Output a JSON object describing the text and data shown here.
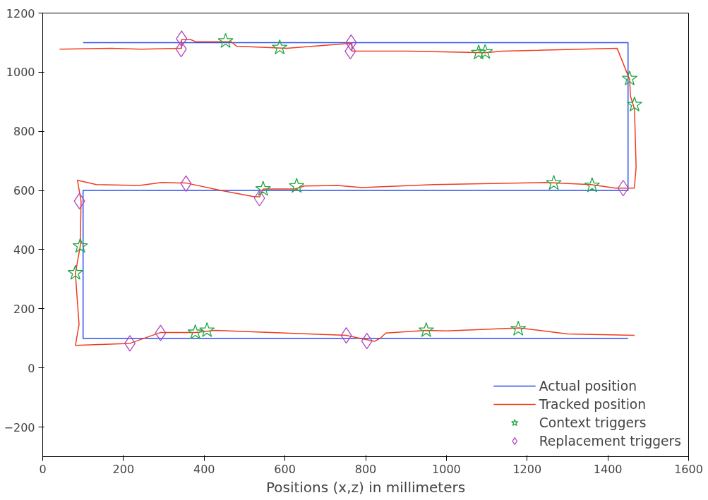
{
  "chart_data": {
    "type": "line",
    "xlabel": "Positions (x,z) in millimeters",
    "xlim": [
      0,
      1600
    ],
    "ylim": [
      -300,
      1200
    ],
    "xticks": [
      0,
      200,
      400,
      600,
      800,
      1000,
      1200,
      1400,
      1600
    ],
    "yticks": [
      -200,
      0,
      200,
      400,
      600,
      800,
      1000,
      1200
    ],
    "grid": false,
    "legend": "bottom right",
    "series": [
      {
        "name": "Actual position",
        "color": "#2850f0",
        "marker": "none",
        "x": [
          1450,
          100,
          100,
          1450,
          1450,
          100
        ],
        "values": [
          100,
          100,
          600,
          600,
          1100,
          1100
        ]
      },
      {
        "name": "Tracked position",
        "color": "#f03c1e",
        "marker": "none",
        "x": [
          1466,
          1300,
          1180,
          1000,
          950,
          850,
          836,
          822,
          752,
          427,
          378,
          292,
          216,
          81,
          90,
          81,
          93,
          95,
          86,
          95,
          133,
          239,
          295,
          356,
          441,
          520,
          537,
          546,
          625,
          648,
          731,
          789,
          969,
          1245,
          1358,
          1419,
          1465,
          1466,
          1470,
          1466,
          1456,
          1454,
          1423,
          1140,
          1096,
          906,
          766,
          766,
          604,
          480,
          467,
          379,
          367,
          344,
          344,
          244,
          169,
          42
        ],
        "values": [
          110,
          115,
          135,
          125,
          127,
          118,
          100,
          90,
          110,
          127,
          120,
          120,
          83,
          76,
          147,
          319,
          412,
          564,
          635,
          632,
          620,
          617,
          627,
          625,
          600,
          580,
          578,
          605,
          605,
          615,
          617,
          610,
          620,
          627,
          620,
          608,
          608,
          613,
          680,
          875,
          919,
          975,
          1081,
          1071,
          1066,
          1071,
          1071,
          1098,
          1081,
          1088,
          1103,
          1103,
          1110,
          1110,
          1081,
          1078,
          1081,
          1078
        ]
      },
      {
        "name": "Context triggers",
        "type": "scatter",
        "color": "#22a844",
        "marker": "star",
        "x": [
          453,
          587,
          1080,
          1096,
          1454,
          1466,
          1266,
          1361,
          546,
          629,
          93,
          81,
          378,
          407,
          950,
          1178
        ],
        "values": [
          1105,
          1083,
          1066,
          1068,
          978,
          890,
          625,
          617,
          605,
          615,
          412,
          321,
          120,
          127,
          127,
          132
        ]
      },
      {
        "name": "Replacement triggers",
        "type": "scatter",
        "color": "#b044c0",
        "marker": "diamond",
        "x": [
          344,
          343,
          764,
          762,
          355,
          537,
          91,
          216,
          292,
          752,
          803,
          1438
        ],
        "values": [
          1113,
          1078,
          1100,
          1071,
          623,
          574,
          564,
          83,
          118,
          110,
          91,
          608
        ]
      }
    ]
  }
}
